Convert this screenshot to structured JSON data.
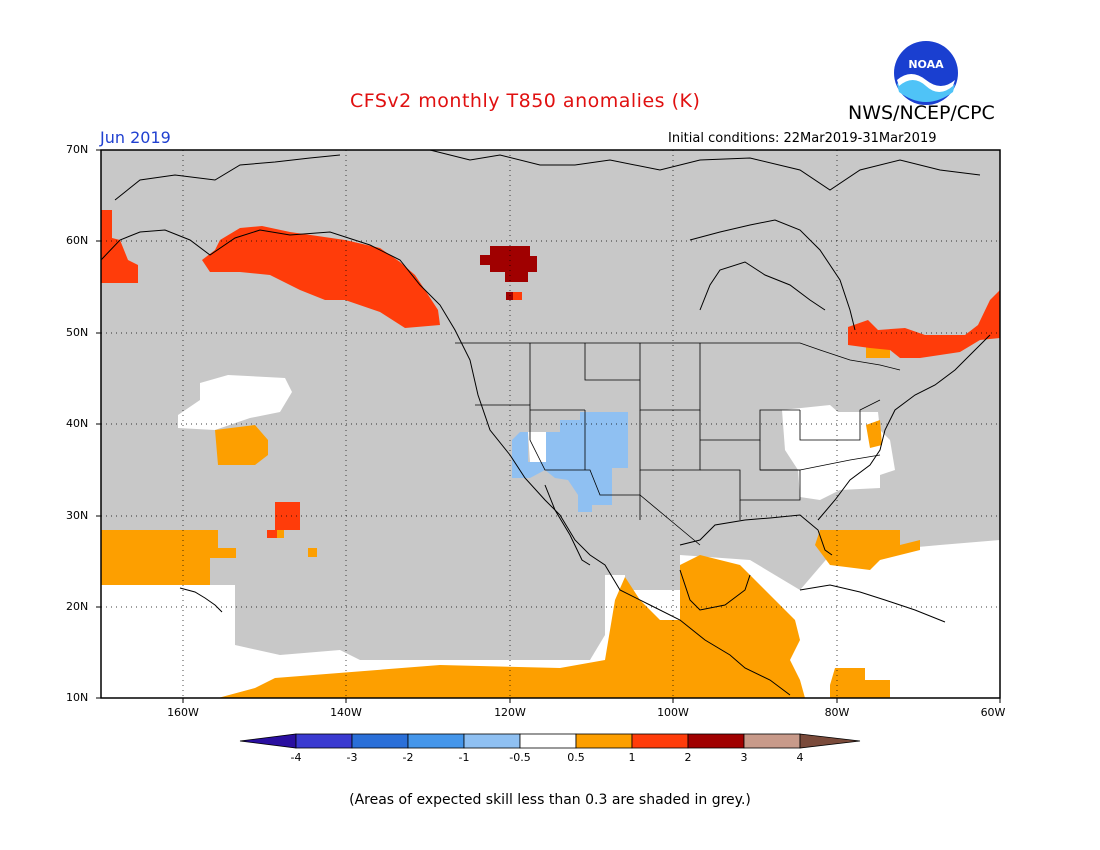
{
  "header": {
    "title": "CFSv2 monthly T850 anomalies (K)",
    "month": "Jun 2019",
    "initial_conditions": "Initial conditions: 22Mar2019-31Mar2019",
    "agency": "NWS/NCEP/CPC",
    "logo_text": "NOAA"
  },
  "axes": {
    "lat_labels": [
      "70N",
      "60N",
      "50N",
      "40N",
      "30N",
      "20N",
      "10N"
    ],
    "lon_labels": [
      "160W",
      "140W",
      "120W",
      "100W",
      "80W",
      "60W"
    ]
  },
  "colorbar": {
    "labels": [
      "-4",
      "-3",
      "-2",
      "-1",
      "-0.5",
      "0.5",
      "1",
      "2",
      "3",
      "4"
    ],
    "colors": [
      "#2a0fa0",
      "#3a3ad0",
      "#2a6fd8",
      "#4596ea",
      "#8fc0f2",
      "#ffffff",
      "#fd9f00",
      "#ff3c0a",
      "#a00000",
      "#c89a8a",
      "#7a4a3a"
    ]
  },
  "colors": {
    "grey_low_skill": "#c8c8c8",
    "no_anomaly": "#ffffff"
  },
  "footnote": "(Areas of expected skill less than 0.3 are shaded in grey.)"
}
